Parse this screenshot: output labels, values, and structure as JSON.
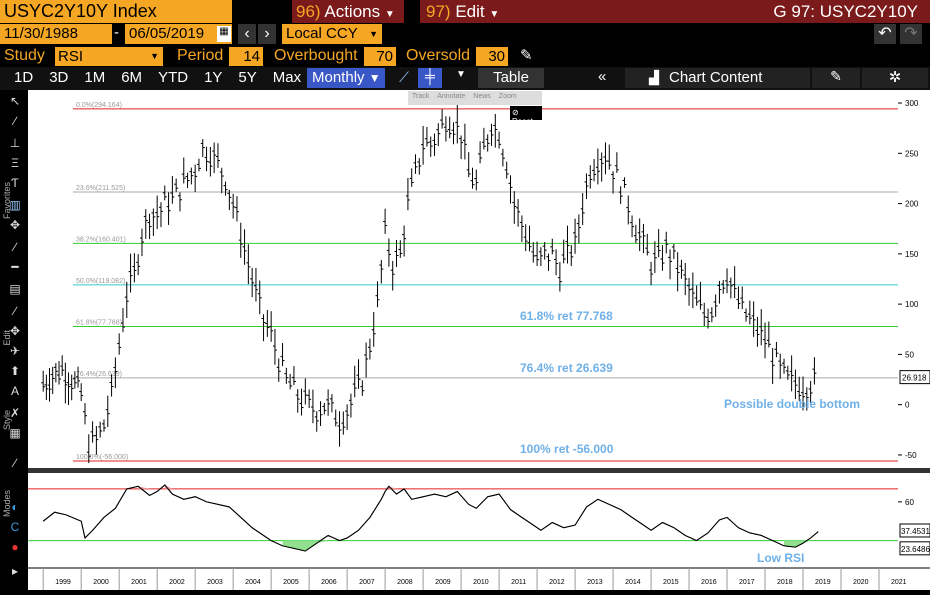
{
  "header": {
    "ticker": "USYC2Y10Y Index",
    "actions_num": "96)",
    "actions_label": "Actions",
    "edit_num": "97)",
    "edit_label": "Edit",
    "graph_title": "G 97: USYC2Y10Y"
  },
  "date_range": {
    "start": "11/30/1988",
    "sep": "-",
    "end": "06/05/2019",
    "currency": "Local CCY"
  },
  "study": {
    "label": "Study",
    "value": "RSI",
    "period_label": "Period",
    "period": "14",
    "overbought_label": "Overbought",
    "overbought": "70",
    "oversold_label": "Oversold",
    "oversold": "30"
  },
  "toolbar": {
    "ranges": [
      "1D",
      "3D",
      "1M",
      "6M",
      "YTD",
      "1Y",
      "5Y",
      "Max"
    ],
    "frequency": "Monthly",
    "table": "Table",
    "chart_content": "Chart Content"
  },
  "mini_toolbar": {
    "track": "Track",
    "annotate": "Annotate",
    "news": "News",
    "zoom": "Zoom",
    "reset": "Reset"
  },
  "side_labels": {
    "favorites": "Favorites",
    "edit": "Edit",
    "style": "Style",
    "modes": "Modes"
  },
  "colors": {
    "accent_amber": "#f5a623",
    "brand_red": "#7b1a1a",
    "selected_blue": "#3a57c8",
    "price": "#000000",
    "fib_red": "#e02020",
    "fib_green": "#33cc33",
    "fib_cyan": "#33cccc",
    "fib_grey": "#aaaaaa",
    "annotation_blue": "#6fb0e8"
  },
  "chart_data": [
    {
      "type": "line",
      "description_series": "USYC2Y10Y monthly bar price",
      "x_labels": [
        "1999",
        "2000",
        "2001",
        "2002",
        "2003",
        "2004",
        "2005",
        "2006",
        "2007",
        "2008",
        "2009",
        "2010",
        "2011",
        "2012",
        "2013",
        "2014",
        "2015",
        "2016",
        "2017",
        "2018",
        "2019",
        "2020",
        "2021"
      ],
      "ylim": [
        -60,
        305
      ],
      "y_ticks": [
        300,
        250,
        200,
        150,
        100,
        50,
        0,
        -50
      ],
      "last_value_label": "26.918",
      "fib_levels": [
        {
          "label": "0.0%(294.164)",
          "value": 294.164,
          "color": "#e02020"
        },
        {
          "label": "23.6%(211.525)",
          "value": 211.525,
          "color": "#aaaaaa"
        },
        {
          "label": "38.2%(160.401)",
          "value": 160.401,
          "color": "#33cc33"
        },
        {
          "label": "50.0%(119.082)",
          "value": 119.082,
          "color": "#33cccc"
        },
        {
          "label": "61.8%(77.768)",
          "value": 77.768,
          "color": "#33cc33"
        },
        {
          "label": "76.4%(26.639)",
          "value": 26.639,
          "color": "#aaaaaa"
        },
        {
          "label": "100.0%(-56.000)",
          "value": -56.0,
          "color": "#e02020"
        }
      ],
      "annotations": [
        "61.8% ret 77.768",
        "76.4% ret 26.639",
        "100% ret -56.000",
        "Possible double bottom"
      ],
      "series": [
        {
          "values_by_year": [
            [
              1999.0,
              20
            ],
            [
              1999.25,
              30
            ],
            [
              1999.5,
              35
            ],
            [
              1999.75,
              25
            ],
            [
              2000.0,
              10
            ],
            [
              2000.2,
              -40
            ],
            [
              2000.4,
              -35
            ],
            [
              2000.6,
              -20
            ],
            [
              2000.8,
              10
            ],
            [
              2001.0,
              60
            ],
            [
              2001.2,
              110
            ],
            [
              2001.4,
              130
            ],
            [
              2001.6,
              170
            ],
            [
              2001.8,
              190
            ],
            [
              2002.0,
              190
            ],
            [
              2002.2,
              200
            ],
            [
              2002.4,
              205
            ],
            [
              2002.6,
              215
            ],
            [
              2002.8,
              225
            ],
            [
              2003.0,
              235
            ],
            [
              2003.2,
              255
            ],
            [
              2003.4,
              250
            ],
            [
              2003.6,
              240
            ],
            [
              2003.8,
              225
            ],
            [
              2004.0,
              200
            ],
            [
              2004.2,
              170
            ],
            [
              2004.4,
              140
            ],
            [
              2004.6,
              110
            ],
            [
              2004.8,
              85
            ],
            [
              2005.0,
              70
            ],
            [
              2005.2,
              45
            ],
            [
              2005.4,
              25
            ],
            [
              2005.6,
              15
            ],
            [
              2005.8,
              5
            ],
            [
              2006.0,
              0
            ],
            [
              2006.2,
              -5
            ],
            [
              2006.4,
              0
            ],
            [
              2006.6,
              -5
            ],
            [
              2006.8,
              -15
            ],
            [
              2007.0,
              -5
            ],
            [
              2007.2,
              10
            ],
            [
              2007.4,
              25
            ],
            [
              2007.6,
              60
            ],
            [
              2007.8,
              100
            ],
            [
              2008.0,
              170
            ],
            [
              2008.2,
              140
            ],
            [
              2008.4,
              150
            ],
            [
              2008.6,
              200
            ],
            [
              2008.8,
              230
            ],
            [
              2009.0,
              260
            ],
            [
              2009.2,
              260
            ],
            [
              2009.4,
              270
            ],
            [
              2009.6,
              285
            ],
            [
              2009.8,
              280
            ],
            [
              2010.0,
              270
            ],
            [
              2010.2,
              230
            ],
            [
              2010.4,
              220
            ],
            [
              2010.6,
              255
            ],
            [
              2010.8,
              280
            ],
            [
              2011.0,
              270
            ],
            [
              2011.2,
              240
            ],
            [
              2011.4,
              200
            ],
            [
              2011.6,
              180
            ],
            [
              2011.8,
              160
            ],
            [
              2012.0,
              140
            ],
            [
              2012.2,
              150
            ],
            [
              2012.4,
              150
            ],
            [
              2012.6,
              135
            ],
            [
              2012.8,
              150
            ],
            [
              2013.0,
              160
            ],
            [
              2013.2,
              200
            ],
            [
              2013.4,
              235
            ],
            [
              2013.6,
              245
            ],
            [
              2013.8,
              250
            ],
            [
              2014.0,
              235
            ],
            [
              2014.2,
              220
            ],
            [
              2014.4,
              200
            ],
            [
              2014.6,
              175
            ],
            [
              2014.8,
              160
            ],
            [
              2015.0,
              140
            ],
            [
              2015.2,
              145
            ],
            [
              2015.4,
              155
            ],
            [
              2015.6,
              145
            ],
            [
              2015.8,
              130
            ],
            [
              2016.0,
              115
            ],
            [
              2016.2,
              100
            ],
            [
              2016.4,
              90
            ],
            [
              2016.6,
              95
            ],
            [
              2016.8,
              120
            ],
            [
              2017.0,
              130
            ],
            [
              2017.2,
              110
            ],
            [
              2017.4,
              95
            ],
            [
              2017.6,
              85
            ],
            [
              2017.8,
              75
            ],
            [
              2018.0,
              65
            ],
            [
              2018.2,
              50
            ],
            [
              2018.4,
              35
            ],
            [
              2018.6,
              25
            ],
            [
              2018.8,
              22
            ],
            [
              2019.0,
              18
            ],
            [
              2019.2,
              22
            ],
            [
              2019.4,
              27
            ]
          ]
        }
      ]
    },
    {
      "type": "line",
      "description_series": "RSI (14)",
      "ylim": [
        15,
        80
      ],
      "y_ticks": [
        60
      ],
      "overbought": 70,
      "oversold": 30,
      "last_value_label": "37.4531",
      "second_value_label": "23.6486",
      "annotations": [
        "Low RSI"
      ],
      "series": [
        {
          "values_by_year": [
            [
              1999.0,
              45
            ],
            [
              1999.3,
              52
            ],
            [
              1999.6,
              50
            ],
            [
              2000.0,
              45
            ],
            [
              2000.1,
              32
            ],
            [
              2000.3,
              38
            ],
            [
              2000.6,
              48
            ],
            [
              2000.9,
              55
            ],
            [
              2001.0,
              60
            ],
            [
              2001.2,
              70
            ],
            [
              2001.5,
              72
            ],
            [
              2001.8,
              65
            ],
            [
              2002.0,
              68
            ],
            [
              2002.2,
              73
            ],
            [
              2002.4,
              66
            ],
            [
              2002.7,
              62
            ],
            [
              2003.0,
              64
            ],
            [
              2003.3,
              60
            ],
            [
              2003.6,
              58
            ],
            [
              2003.9,
              56
            ],
            [
              2004.2,
              48
            ],
            [
              2004.5,
              40
            ],
            [
              2004.8,
              34
            ],
            [
              2005.0,
              30
            ],
            [
              2005.3,
              26
            ],
            [
              2005.6,
              24
            ],
            [
              2005.9,
              22
            ],
            [
              2006.2,
              28
            ],
            [
              2006.5,
              34
            ],
            [
              2006.8,
              30
            ],
            [
              2007.0,
              32
            ],
            [
              2007.3,
              38
            ],
            [
              2007.6,
              48
            ],
            [
              2007.9,
              62
            ],
            [
              2008.0,
              68
            ],
            [
              2008.1,
              72
            ],
            [
              2008.3,
              66
            ],
            [
              2008.5,
              70
            ],
            [
              2008.7,
              62
            ],
            [
              2009.0,
              64
            ],
            [
              2009.3,
              66
            ],
            [
              2009.6,
              64
            ],
            [
              2009.9,
              68
            ],
            [
              2010.2,
              58
            ],
            [
              2010.4,
              55
            ],
            [
              2010.7,
              64
            ],
            [
              2011.0,
              66
            ],
            [
              2011.3,
              54
            ],
            [
              2011.6,
              48
            ],
            [
              2011.9,
              42
            ],
            [
              2012.1,
              38
            ],
            [
              2012.4,
              44
            ],
            [
              2012.7,
              40
            ],
            [
              2013.0,
              42
            ],
            [
              2013.3,
              56
            ],
            [
              2013.6,
              62
            ],
            [
              2013.9,
              58
            ],
            [
              2014.2,
              54
            ],
            [
              2014.5,
              48
            ],
            [
              2014.8,
              42
            ],
            [
              2015.0,
              38
            ],
            [
              2015.3,
              44
            ],
            [
              2015.6,
              40
            ],
            [
              2015.9,
              34
            ],
            [
              2016.2,
              30
            ],
            [
              2016.5,
              36
            ],
            [
              2016.8,
              46
            ],
            [
              2017.0,
              48
            ],
            [
              2017.3,
              40
            ],
            [
              2017.6,
              36
            ],
            [
              2017.9,
              34
            ],
            [
              2018.2,
              30
            ],
            [
              2018.5,
              26
            ],
            [
              2018.8,
              25
            ],
            [
              2019.0,
              28
            ],
            [
              2019.2,
              32
            ],
            [
              2019.4,
              37
            ]
          ]
        }
      ]
    }
  ]
}
